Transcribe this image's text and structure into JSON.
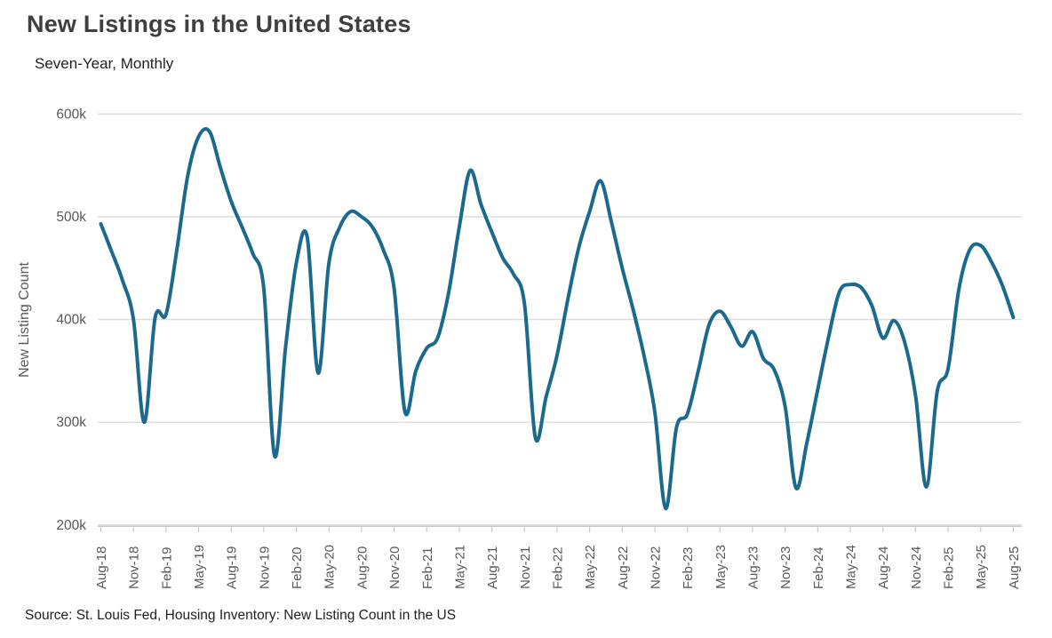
{
  "header": {
    "title": "New Listings in the United States",
    "subtitle": "Seven-Year, Monthly"
  },
  "footer": {
    "source": "Source: St. Louis Fed, Housing Inventory: New Listing Count in the US"
  },
  "colors": {
    "line": "#1b6a8e",
    "grid": "#dcdcdc",
    "axis_line": "#c9c9c9",
    "axis_text": "#595959",
    "title_text": "#3f3f3f",
    "body_text": "#1f1f1f"
  },
  "chart_data": {
    "type": "line",
    "title": "New Listings in the United States",
    "subtitle": "Seven-Year, Monthly",
    "xlabel": "",
    "ylabel": "New Listing Count",
    "ylim": [
      200,
      600
    ],
    "yticks": [
      200,
      300,
      400,
      500,
      600
    ],
    "ytick_labels": [
      "200k",
      "300k",
      "400k",
      "500k",
      "600k"
    ],
    "x_tick_interval_months": 3,
    "grid": "horizontal",
    "legend_position": "none",
    "source": "Source: St. Louis Fed, Housing Inventory: New Listing Count in the US",
    "months": [
      "Aug-18",
      "Sep-18",
      "Oct-18",
      "Nov-18",
      "Dec-18",
      "Jan-19",
      "Feb-19",
      "Mar-19",
      "Apr-19",
      "May-19",
      "Jun-19",
      "Jul-19",
      "Aug-19",
      "Sep-19",
      "Oct-19",
      "Nov-19",
      "Dec-19",
      "Jan-20",
      "Feb-20",
      "Mar-20",
      "Apr-20",
      "May-20",
      "Jun-20",
      "Jul-20",
      "Aug-20",
      "Sep-20",
      "Oct-20",
      "Nov-20",
      "Dec-20",
      "Jan-21",
      "Feb-21",
      "Mar-21",
      "Apr-21",
      "May-21",
      "Jun-21",
      "Jul-21",
      "Aug-21",
      "Sep-21",
      "Oct-21",
      "Nov-21",
      "Dec-21",
      "Jan-22",
      "Feb-22",
      "Mar-22",
      "Apr-22",
      "May-22",
      "Jun-22",
      "Jul-22",
      "Aug-22",
      "Sep-22",
      "Oct-22",
      "Nov-22",
      "Dec-22",
      "Jan-23",
      "Feb-23",
      "Mar-23",
      "Apr-23",
      "May-23",
      "Jun-23",
      "Jul-23",
      "Aug-23",
      "Sep-23",
      "Oct-23",
      "Nov-23",
      "Dec-23",
      "Jan-24",
      "Feb-24",
      "Mar-24",
      "Apr-24",
      "May-24",
      "Jun-24",
      "Jul-24",
      "Aug-24",
      "Sep-24",
      "Oct-24",
      "Nov-24",
      "Dec-24",
      "Jan-25",
      "Feb-25",
      "Mar-25",
      "Apr-25",
      "May-25",
      "Jun-25",
      "Jul-25",
      "Aug-25"
    ],
    "series": [
      {
        "name": "New Listing Count in the US",
        "unit": "thousands",
        "values": [
          493,
          466,
          438,
          400,
          300,
          402,
          405,
          468,
          540,
          578,
          583,
          548,
          515,
          490,
          464,
          430,
          267,
          372,
          455,
          480,
          348,
          455,
          490,
          505,
          500,
          490,
          468,
          430,
          310,
          350,
          372,
          382,
          425,
          490,
          545,
          512,
          485,
          460,
          444,
          415,
          285,
          325,
          365,
          420,
          470,
          505,
          535,
          495,
          450,
          410,
          365,
          310,
          216,
          295,
          308,
          350,
          395,
          408,
          393,
          374,
          388,
          362,
          351,
          315,
          236,
          280,
          332,
          383,
          427,
          434,
          431,
          413,
          382,
          399,
          378,
          326,
          237,
          330,
          352,
          430,
          468,
          472,
          456,
          433,
          402
        ]
      }
    ]
  }
}
